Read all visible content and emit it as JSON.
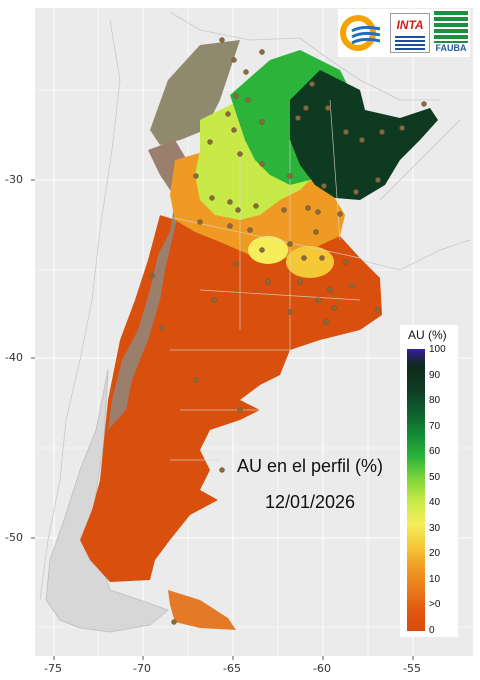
{
  "map": {
    "annotation_title": "AU en el perfil (%)",
    "annotation_date": "12/01/2026",
    "background_color": "#ebebeb",
    "grid_color": "#ffffff"
  },
  "legend": {
    "title": "AU (%)",
    "labels": [
      "100",
      "90",
      "80",
      "70",
      "60",
      "50",
      "40",
      "30",
      "20",
      "10",
      ">0",
      "0"
    ]
  },
  "axes": {
    "x_ticks": [
      "-75",
      "-70",
      "-65",
      "-60",
      "-55"
    ],
    "y_ticks": [
      "-30",
      "-40",
      "-50"
    ]
  },
  "logos": {
    "inta": "INTA",
    "fauba": "FAUBA"
  }
}
